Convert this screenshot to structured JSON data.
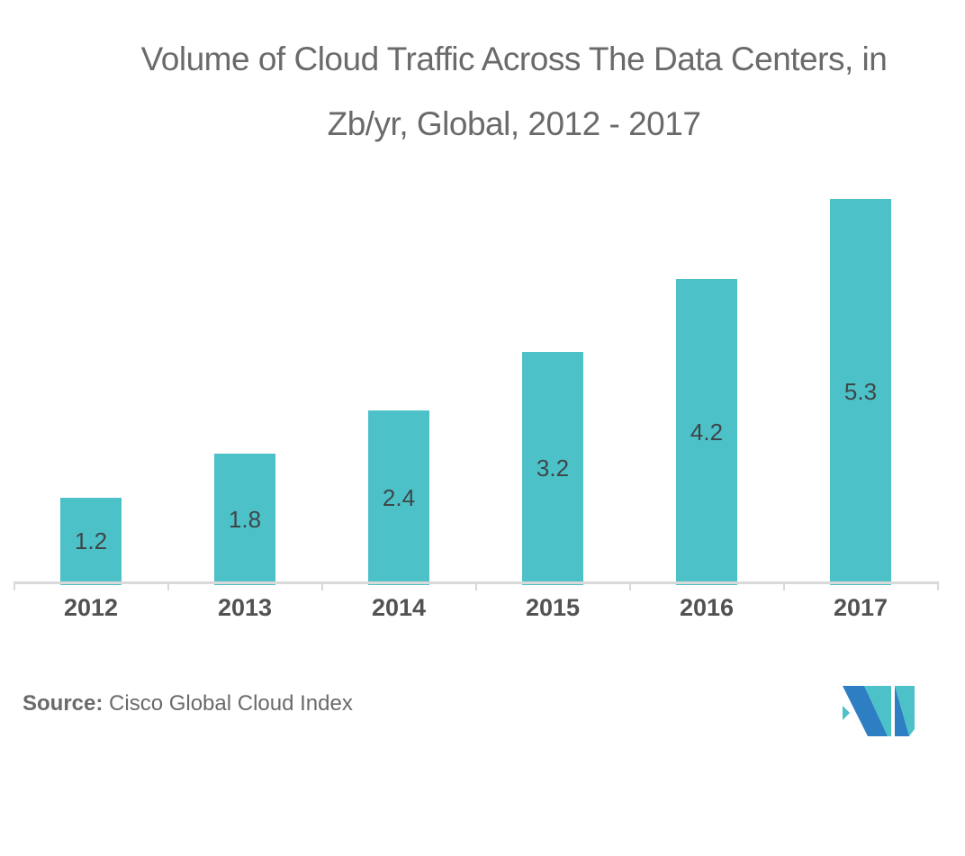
{
  "title": {
    "line1": "Volume of Cloud Traffic Across The Data Centers, in",
    "line2": "Zb/yr, Global, 2012 - 2017"
  },
  "chart_data": {
    "type": "bar",
    "title": "Volume of Cloud Traffic Across The Data Centers, in Zb/yr, Global, 2012 - 2017",
    "categories": [
      "2012",
      "2013",
      "2014",
      "2015",
      "2016",
      "2017"
    ],
    "values": [
      1.2,
      1.8,
      2.4,
      3.2,
      4.2,
      5.3
    ],
    "xlabel": "",
    "ylabel": "",
    "unit": "Zb/yr",
    "ylim": [
      0,
      5.5
    ],
    "grid": false,
    "legend": "none",
    "data_label_position": "inside-center",
    "bar_color": "#4cc2c8",
    "data_label_color": "#3f4649",
    "axis_color": "#d9d9d9",
    "year_label_color": "#525252"
  },
  "footer": {
    "source_label": "Source:",
    "source_text": "Cisco Global Cloud Index"
  },
  "logo": {
    "name": "mordor-intelligence-logo",
    "teal": "#4cc2c8",
    "blue": "#2d7ec3"
  },
  "colors": {
    "background": "#ffffff",
    "title_text": "#6a6a6a",
    "source_text": "#6a6a6a"
  }
}
